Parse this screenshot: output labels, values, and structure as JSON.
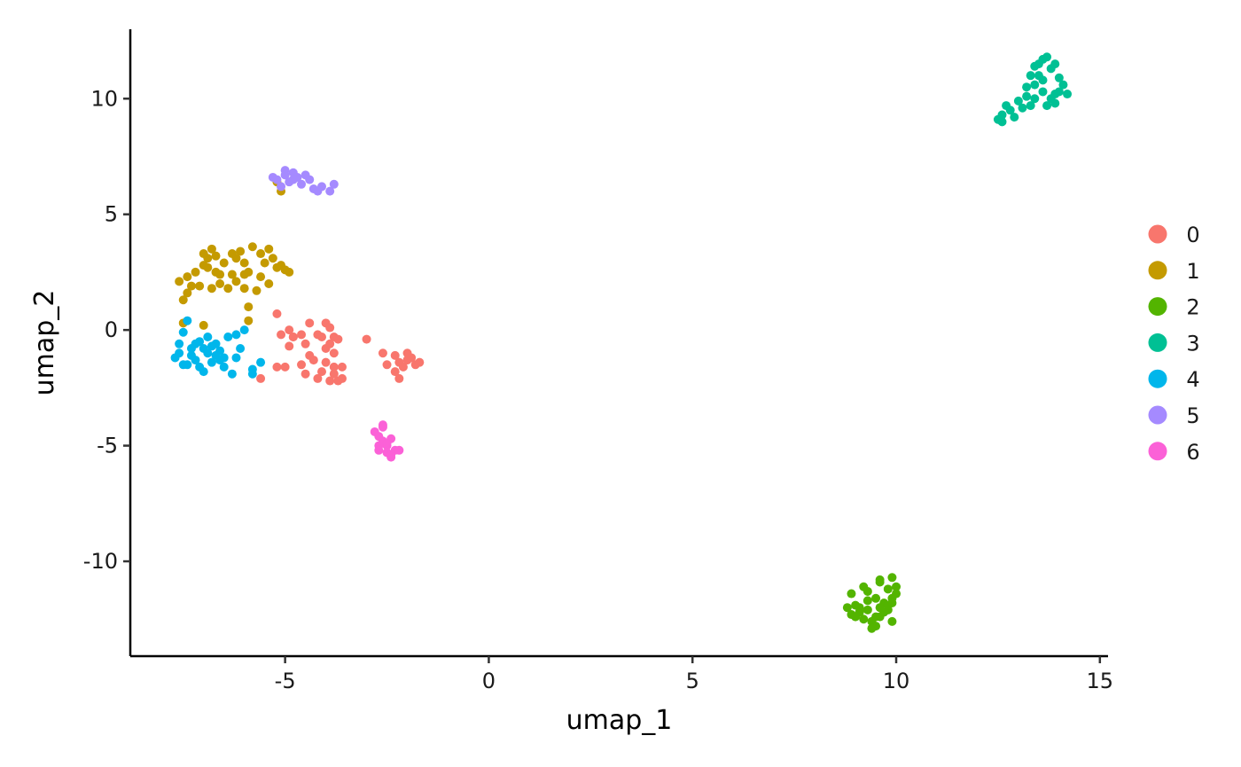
{
  "chart_data": {
    "type": "scatter",
    "xlabel": "umap_1",
    "ylabel": "umap_2",
    "xlim": [
      -8.8,
      15.2
    ],
    "ylim": [
      -14.1,
      13.0
    ],
    "xticks": [
      -5,
      0,
      5,
      10,
      15
    ],
    "yticks": [
      -10,
      -5,
      0,
      5,
      10
    ],
    "xtick_labels": [
      "-5",
      "0",
      "5",
      "10",
      "15"
    ],
    "ytick_labels": [
      "-10",
      "-5",
      "0",
      "5",
      "10"
    ],
    "grid": false,
    "legend_position": "right",
    "series": [
      {
        "name": "0",
        "color": "#F8766D",
        "points": [
          [
            -5.2,
            0.7
          ],
          [
            -5.1,
            -0.2
          ],
          [
            -4.9,
            0.0
          ],
          [
            -4.8,
            -0.3
          ],
          [
            -4.9,
            -0.7
          ],
          [
            -5.0,
            -1.6
          ],
          [
            -4.6,
            -0.2
          ],
          [
            -4.4,
            0.3
          ],
          [
            -4.5,
            -0.6
          ],
          [
            -4.2,
            -0.2
          ],
          [
            -4.0,
            0.3
          ],
          [
            -3.9,
            0.1
          ],
          [
            -3.8,
            -0.3
          ],
          [
            -4.0,
            -0.8
          ],
          [
            -3.7,
            -0.4
          ],
          [
            -3.8,
            -1.0
          ],
          [
            -4.3,
            -1.3
          ],
          [
            -4.0,
            -1.4
          ],
          [
            -3.8,
            -1.6
          ],
          [
            -3.6,
            -1.6
          ],
          [
            -4.5,
            -1.9
          ],
          [
            -4.1,
            -1.8
          ],
          [
            -3.9,
            -2.2
          ],
          [
            -3.7,
            -2.2
          ],
          [
            -4.2,
            -2.1
          ],
          [
            -4.6,
            -1.5
          ],
          [
            -3.8,
            -1.9
          ],
          [
            -5.6,
            -2.1
          ],
          [
            -5.2,
            -1.6
          ],
          [
            -4.8,
            -0.3
          ],
          [
            -4.1,
            -0.3
          ],
          [
            -3.9,
            -0.6
          ],
          [
            -3.0,
            -0.4
          ],
          [
            -2.6,
            -1.0
          ],
          [
            -2.5,
            -1.5
          ],
          [
            -2.3,
            -1.1
          ],
          [
            -2.2,
            -1.4
          ],
          [
            -2.0,
            -1.3
          ],
          [
            -1.9,
            -1.2
          ],
          [
            -1.8,
            -1.5
          ],
          [
            -2.1,
            -1.6
          ],
          [
            -2.3,
            -1.8
          ],
          [
            -2.2,
            -2.1
          ],
          [
            -1.7,
            -1.4
          ],
          [
            -2.0,
            -1.0
          ],
          [
            -4.4,
            -1.1
          ],
          [
            -3.6,
            -2.1
          ]
        ]
      },
      {
        "name": "1",
        "color": "#C49A00",
        "points": [
          [
            -7.6,
            2.1
          ],
          [
            -7.4,
            2.3
          ],
          [
            -7.3,
            1.9
          ],
          [
            -7.2,
            2.5
          ],
          [
            -7.0,
            2.8
          ],
          [
            -6.9,
            3.1
          ],
          [
            -7.0,
            3.3
          ],
          [
            -6.8,
            3.5
          ],
          [
            -6.7,
            3.2
          ],
          [
            -6.9,
            2.7
          ],
          [
            -6.6,
            2.4
          ],
          [
            -6.5,
            2.9
          ],
          [
            -6.3,
            3.3
          ],
          [
            -6.2,
            3.1
          ],
          [
            -6.1,
            3.4
          ],
          [
            -6.0,
            2.9
          ],
          [
            -5.9,
            2.5
          ],
          [
            -5.8,
            3.6
          ],
          [
            -5.6,
            3.3
          ],
          [
            -5.4,
            3.5
          ],
          [
            -5.3,
            3.1
          ],
          [
            -5.1,
            2.8
          ],
          [
            -5.0,
            2.6
          ],
          [
            -4.9,
            2.5
          ],
          [
            -5.2,
            2.7
          ],
          [
            -5.5,
            2.9
          ],
          [
            -5.6,
            2.3
          ],
          [
            -6.2,
            2.1
          ],
          [
            -6.4,
            1.8
          ],
          [
            -6.8,
            1.8
          ],
          [
            -7.1,
            1.9
          ],
          [
            -7.4,
            1.6
          ],
          [
            -7.5,
            1.3
          ],
          [
            -6.0,
            1.8
          ],
          [
            -5.7,
            1.7
          ],
          [
            -6.3,
            2.4
          ],
          [
            -6.6,
            2.0
          ],
          [
            -7.5,
            0.3
          ],
          [
            -7.0,
            0.2
          ],
          [
            -5.9,
            1.0
          ],
          [
            -5.9,
            0.4
          ],
          [
            -5.2,
            6.4
          ],
          [
            -5.1,
            6.0
          ],
          [
            -6.0,
            2.4
          ],
          [
            -5.4,
            2.0
          ],
          [
            -6.7,
            2.5
          ]
        ]
      },
      {
        "name": "2",
        "color": "#53B400",
        "points": [
          [
            8.8,
            -12.0
          ],
          [
            8.9,
            -12.3
          ],
          [
            9.0,
            -11.9
          ],
          [
            9.1,
            -12.2
          ],
          [
            9.2,
            -11.1
          ],
          [
            9.3,
            -11.3
          ],
          [
            9.3,
            -12.1
          ],
          [
            9.4,
            -12.6
          ],
          [
            9.5,
            -12.8
          ],
          [
            9.5,
            -11.6
          ],
          [
            9.6,
            -10.8
          ],
          [
            9.6,
            -12.4
          ],
          [
            9.7,
            -11.8
          ],
          [
            9.8,
            -12.1
          ],
          [
            9.8,
            -11.2
          ],
          [
            9.9,
            -10.7
          ],
          [
            9.9,
            -11.6
          ],
          [
            10.0,
            -11.4
          ],
          [
            10.0,
            -11.1
          ],
          [
            9.9,
            -12.6
          ],
          [
            9.7,
            -12.2
          ],
          [
            9.4,
            -12.9
          ],
          [
            9.2,
            -12.5
          ],
          [
            8.9,
            -11.4
          ],
          [
            9.1,
            -12.0
          ],
          [
            9.3,
            -11.7
          ],
          [
            9.6,
            -12.0
          ],
          [
            9.5,
            -12.4
          ],
          [
            9.8,
            -11.9
          ],
          [
            9.6,
            -10.9
          ],
          [
            9.0,
            -12.4
          ],
          [
            9.9,
            -11.8
          ]
        ]
      },
      {
        "name": "3",
        "color": "#00C094",
        "points": [
          [
            12.5,
            9.1
          ],
          [
            12.6,
            9.3
          ],
          [
            12.7,
            9.7
          ],
          [
            12.8,
            9.5
          ],
          [
            12.9,
            9.2
          ],
          [
            13.0,
            9.9
          ],
          [
            13.1,
            9.6
          ],
          [
            13.2,
            10.1
          ],
          [
            13.2,
            10.5
          ],
          [
            13.3,
            9.7
          ],
          [
            13.4,
            10.0
          ],
          [
            13.4,
            10.6
          ],
          [
            13.5,
            11.0
          ],
          [
            13.5,
            11.5
          ],
          [
            13.6,
            10.3
          ],
          [
            13.6,
            11.7
          ],
          [
            13.7,
            11.8
          ],
          [
            13.7,
            9.7
          ],
          [
            13.8,
            11.3
          ],
          [
            13.8,
            10.0
          ],
          [
            13.9,
            11.5
          ],
          [
            14.0,
            10.3
          ],
          [
            14.0,
            10.9
          ],
          [
            14.1,
            10.6
          ],
          [
            14.2,
            10.2
          ],
          [
            13.9,
            9.8
          ],
          [
            12.6,
            9.0
          ],
          [
            13.3,
            11.0
          ],
          [
            13.6,
            10.8
          ],
          [
            13.9,
            10.2
          ],
          [
            13.4,
            11.4
          ]
        ]
      },
      {
        "name": "4",
        "color": "#00B6EB",
        "points": [
          [
            -7.7,
            -1.2
          ],
          [
            -7.6,
            -0.6
          ],
          [
            -7.5,
            -1.5
          ],
          [
            -7.5,
            -0.1
          ],
          [
            -7.4,
            0.4
          ],
          [
            -7.3,
            -0.8
          ],
          [
            -7.2,
            -1.3
          ],
          [
            -7.1,
            -1.6
          ],
          [
            -7.1,
            -0.5
          ],
          [
            -7.0,
            -1.8
          ],
          [
            -6.9,
            -1.0
          ],
          [
            -6.9,
            -0.3
          ],
          [
            -6.8,
            -1.4
          ],
          [
            -6.8,
            -0.7
          ],
          [
            -6.7,
            -1.1
          ],
          [
            -6.6,
            -0.9
          ],
          [
            -6.5,
            -1.6
          ],
          [
            -6.4,
            -0.3
          ],
          [
            -6.3,
            -1.9
          ],
          [
            -6.2,
            -1.2
          ],
          [
            -6.2,
            -0.2
          ],
          [
            -6.1,
            -0.8
          ],
          [
            -6.0,
            0.0
          ],
          [
            -5.8,
            -1.7
          ],
          [
            -5.6,
            -1.4
          ],
          [
            -7.6,
            -1.0
          ],
          [
            -7.3,
            -1.1
          ],
          [
            -6.6,
            -1.3
          ],
          [
            -7.4,
            -1.5
          ],
          [
            -6.7,
            -0.6
          ],
          [
            -5.8,
            -1.9
          ],
          [
            -7.0,
            -0.8
          ],
          [
            -6.5,
            -1.2
          ],
          [
            -7.2,
            -0.6
          ]
        ]
      },
      {
        "name": "5",
        "color": "#A58AFF",
        "points": [
          [
            -5.3,
            6.6
          ],
          [
            -5.2,
            6.5
          ],
          [
            -5.1,
            6.2
          ],
          [
            -5.0,
            6.9
          ],
          [
            -4.9,
            6.4
          ],
          [
            -4.8,
            6.8
          ],
          [
            -4.7,
            6.6
          ],
          [
            -4.6,
            6.3
          ],
          [
            -4.5,
            6.7
          ],
          [
            -4.4,
            6.5
          ],
          [
            -4.3,
            6.1
          ],
          [
            -4.2,
            6.0
          ],
          [
            -4.1,
            6.2
          ],
          [
            -3.9,
            6.0
          ],
          [
            -3.8,
            6.3
          ],
          [
            -5.0,
            6.7
          ],
          [
            -4.8,
            6.5
          ]
        ]
      },
      {
        "name": "6",
        "color": "#FB61D7",
        "points": [
          [
            -2.8,
            -4.4
          ],
          [
            -2.7,
            -4.6
          ],
          [
            -2.6,
            -4.1
          ],
          [
            -2.6,
            -4.8
          ],
          [
            -2.5,
            -5.0
          ],
          [
            -2.5,
            -5.3
          ],
          [
            -2.4,
            -4.7
          ],
          [
            -2.4,
            -5.5
          ],
          [
            -2.3,
            -5.2
          ],
          [
            -2.2,
            -5.2
          ],
          [
            -2.7,
            -5.2
          ],
          [
            -2.6,
            -4.2
          ],
          [
            -2.5,
            -4.9
          ],
          [
            -2.4,
            -5.4
          ],
          [
            -2.7,
            -5.0
          ]
        ]
      }
    ]
  }
}
